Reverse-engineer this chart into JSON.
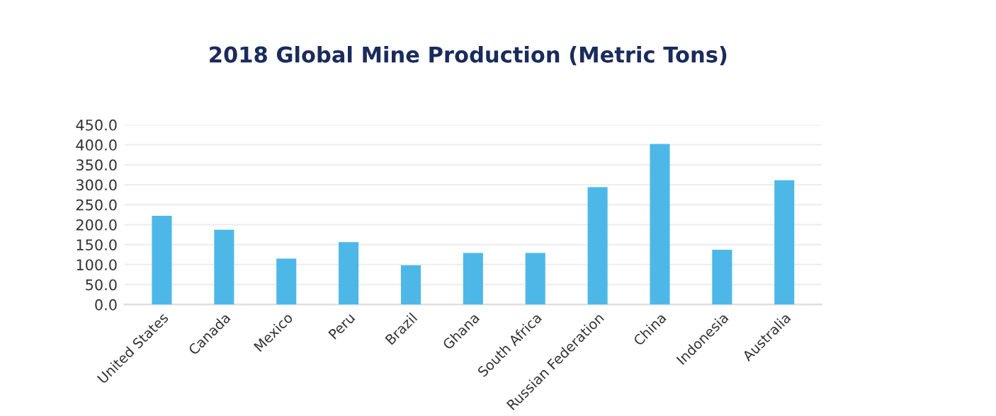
{
  "chart_data": {
    "type": "bar",
    "title": "2018 Global Mine Production (Metric Tons)",
    "categories": [
      "United States",
      "Canada",
      "Mexico",
      "Peru",
      "Brazil",
      "Ghana",
      "South Africa",
      "Russian Federation",
      "China",
      "Indonesia",
      "Australia"
    ],
    "values": [
      222,
      187,
      115,
      156,
      98,
      129,
      129,
      294,
      402,
      137,
      311
    ],
    "color": "#4db8e8",
    "ylim": [
      0,
      450
    ],
    "yticks": [
      {
        "value": 0,
        "label": "0.0"
      },
      {
        "value": 50,
        "label": "50.0"
      },
      {
        "value": 100,
        "label": "100.0"
      },
      {
        "value": 150,
        "label": "150.0"
      },
      {
        "value": 200,
        "label": "200.0"
      },
      {
        "value": 250,
        "label": "250.0"
      },
      {
        "value": 300,
        "label": "300.0"
      },
      {
        "value": 350,
        "label": "350.0"
      },
      {
        "value": 400,
        "label": "400.0"
      },
      {
        "value": 450,
        "label": "450.0"
      }
    ],
    "grid": "y"
  }
}
